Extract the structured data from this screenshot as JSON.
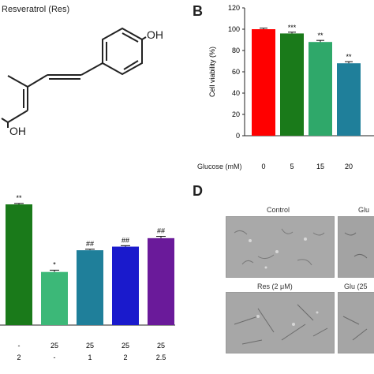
{
  "panelA": {
    "title": "Resveratrol (Res)",
    "oh_top": "OH",
    "oh_bottom": "OH"
  },
  "panelB": {
    "letter": "B",
    "glucose_label": "Glucose (mM)"
  },
  "panelD": {
    "letter": "D",
    "captions": [
      "Control",
      "Glu",
      "Res (2 μM)",
      "Glu (25"
    ]
  },
  "chart_data": [
    {
      "type": "bar",
      "categories": [
        "0",
        "5",
        "15",
        "20"
      ],
      "values": [
        100,
        96,
        88,
        68
      ],
      "errors": [
        1.0,
        1.2,
        1.5,
        1.5
      ],
      "significance": [
        "",
        "***",
        "**",
        "**"
      ],
      "colors": [
        "#ff0000",
        "#1a7a1a",
        "#2fa86a",
        "#1f7f9a"
      ],
      "ylabel": "Cell viability (%)",
      "xlabel": "Glucose (mM)",
      "ylim": [
        0,
        120
      ],
      "yticks": [
        0,
        20,
        40,
        60,
        80,
        100,
        120
      ],
      "grid": false
    },
    {
      "type": "bar",
      "categories": [
        "-\n2",
        "25\n-",
        "25\n1",
        "25\n2",
        "25\n2.5"
      ],
      "row1": [
        "-",
        "25",
        "25",
        "25",
        "25"
      ],
      "row2": [
        "2",
        "-",
        "1",
        "2",
        "2.5"
      ],
      "values": [
        100,
        44,
        62,
        65,
        72
      ],
      "errors": [
        0.8,
        1.5,
        0.8,
        0.8,
        1.5
      ],
      "significance": [
        "**",
        "*",
        "##",
        "##",
        "##"
      ],
      "colors": [
        "#1a7a1a",
        "#3cb878",
        "#1f7f9a",
        "#1a1acc",
        "#6a1a9a"
      ],
      "grid": false
    }
  ]
}
